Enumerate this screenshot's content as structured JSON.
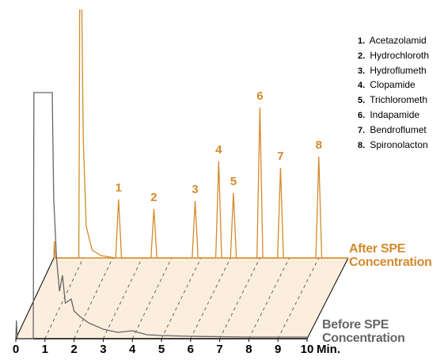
{
  "chart_data": {
    "type": "chromatogram",
    "xlim": [
      0,
      10
    ],
    "xticks": [
      0,
      1,
      2,
      3,
      4,
      5,
      6,
      7,
      8,
      9,
      10
    ],
    "xlabel": "Min.",
    "ylim": [
      0,
      200
    ],
    "series": [
      {
        "name": "After SPE Concentration",
        "color": "#d48a2c",
        "x": [
          0,
          0.02,
          0.05,
          0.85,
          0.88,
          0.95,
          1.0,
          1.1,
          1.3,
          1.6,
          2.1,
          2.2,
          2.3,
          3.3,
          3.4,
          3.5,
          4.7,
          4.8,
          4.9,
          5.5,
          5.6,
          5.7,
          6.0,
          6.1,
          6.2,
          6.9,
          7.0,
          7.1,
          7.6,
          7.7,
          7.8,
          8.9,
          9.0,
          9.1,
          10
        ],
        "values": [
          0,
          21,
          0,
          0,
          320,
          320,
          150,
          40,
          10,
          3,
          0,
          74,
          0,
          0,
          62,
          0,
          0,
          72,
          0,
          0,
          122,
          0,
          0,
          82,
          0,
          0,
          190,
          0,
          0,
          114,
          0,
          0,
          128,
          0,
          0
        ]
      },
      {
        "name": "Before SPE Concentration",
        "color": "#666666",
        "x": [
          0,
          0.02,
          0.05,
          0.6,
          0.62,
          1.25,
          1.3,
          1.4,
          1.5,
          1.6,
          1.7,
          1.9,
          2.0,
          2.2,
          2.5,
          3.0,
          3.5,
          4.0,
          4.5,
          5.0,
          6.0,
          8.0,
          10.0
        ],
        "values": [
          0,
          23,
          0,
          0,
          311,
          311,
          178,
          100,
          60,
          80,
          45,
          50,
          35,
          28,
          20,
          12,
          8,
          10,
          5,
          4,
          3,
          2,
          2
        ]
      }
    ],
    "annotations": [
      {
        "text": "1",
        "x": 2.2,
        "y": 74
      },
      {
        "text": "2",
        "x": 3.4,
        "y": 62
      },
      {
        "text": "3",
        "x": 4.8,
        "y": 72
      },
      {
        "text": "4",
        "x": 5.6,
        "y": 122
      },
      {
        "text": "5",
        "x": 6.1,
        "y": 82
      },
      {
        "text": "6",
        "x": 7.0,
        "y": 190
      },
      {
        "text": "7",
        "x": 7.7,
        "y": 114
      },
      {
        "text": "8",
        "x": 9.0,
        "y": 128
      }
    ],
    "compounds": [
      {
        "number": "1.",
        "name": "Acetazolamid"
      },
      {
        "number": "2.",
        "name": "Hydrochloroth"
      },
      {
        "number": "3.",
        "name": "Hydroflumeth"
      },
      {
        "number": "4.",
        "name": "Clopamide"
      },
      {
        "number": "5.",
        "name": "Trichlorometh"
      },
      {
        "number": "6.",
        "name": "Indapamide"
      },
      {
        "number": "7.",
        "name": "Bendroflumet"
      },
      {
        "number": "8.",
        "name": "Spironolacton"
      }
    ]
  }
}
